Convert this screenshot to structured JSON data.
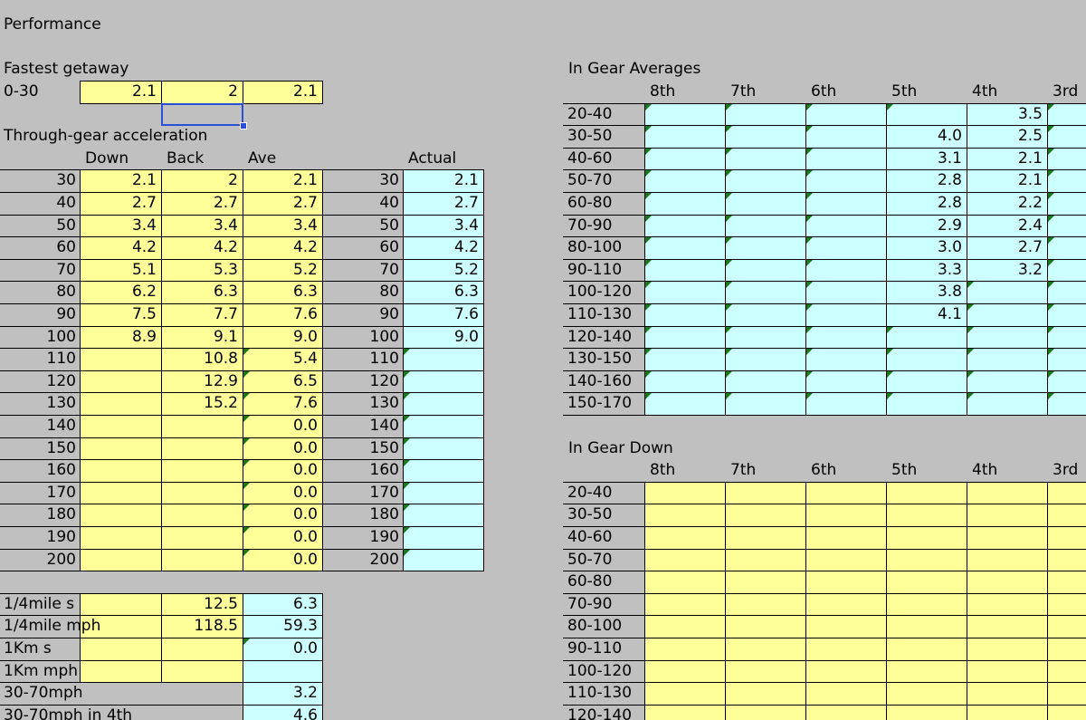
{
  "title": "Performance",
  "getaway": {
    "title": "Fastest getaway",
    "label": "0-30",
    "cells": [
      "2.1",
      "2",
      "2.1"
    ]
  },
  "acceleration": {
    "title": "Through-gear acceleration",
    "headers": [
      "Down",
      "Back",
      "Ave"
    ],
    "actual_header": "Actual",
    "rows": [
      [
        "30",
        "2.1",
        "2",
        "2.1",
        "30",
        "2.1"
      ],
      [
        "40",
        "2.7",
        "2.7",
        "2.7",
        "40",
        "2.7"
      ],
      [
        "50",
        "3.4",
        "3.4",
        "3.4",
        "50",
        "3.4"
      ],
      [
        "60",
        "4.2",
        "4.2",
        "4.2",
        "60",
        "4.2"
      ],
      [
        "70",
        "5.1",
        "5.3",
        "5.2",
        "70",
        "5.2"
      ],
      [
        "80",
        "6.2",
        "6.3",
        "6.3",
        "80",
        "6.3"
      ],
      [
        "90",
        "7.5",
        "7.7",
        "7.6",
        "90",
        "7.6"
      ],
      [
        "100",
        "8.9",
        "9.1",
        "9.0",
        "100",
        "9.0"
      ],
      [
        "110",
        null,
        "10.8",
        "5.4",
        "110",
        null
      ],
      [
        "120",
        null,
        "12.9",
        "6.5",
        "120",
        null
      ],
      [
        "130",
        null,
        "15.2",
        "7.6",
        "130",
        null
      ],
      [
        "140",
        null,
        null,
        "0.0",
        "140",
        null
      ],
      [
        "150",
        null,
        null,
        "0.0",
        "150",
        null
      ],
      [
        "160",
        null,
        null,
        "0.0",
        "160",
        null
      ],
      [
        "170",
        null,
        null,
        "0.0",
        "170",
        null
      ],
      [
        "180",
        null,
        null,
        "0.0",
        "180",
        null
      ],
      [
        "190",
        null,
        null,
        "0.0",
        "190",
        null
      ],
      [
        "200",
        null,
        null,
        "0.0",
        "200",
        null
      ]
    ]
  },
  "summary": {
    "rows": [
      [
        "1/4mile s",
        null,
        "12.5",
        "6.3"
      ],
      [
        "1/4mile mph",
        null,
        "118.5",
        "59.3"
      ],
      [
        "1Km s",
        null,
        null,
        "0.0"
      ],
      [
        "1Km mph",
        null,
        null,
        null
      ],
      [
        "30-70mph",
        null,
        null,
        "3.2"
      ],
      [
        "30-70mph in 4th",
        null,
        null,
        "4.6"
      ]
    ]
  },
  "averages": {
    "title": "In Gear Averages",
    "headers": [
      "8th",
      "7th",
      "6th",
      "5th",
      "4th",
      "3rd"
    ],
    "rows": [
      [
        "20-40",
        null,
        null,
        null,
        null,
        "3.5",
        null
      ],
      [
        "30-50",
        null,
        null,
        null,
        "4.0",
        "2.5",
        null
      ],
      [
        "40-60",
        null,
        null,
        null,
        "3.1",
        "2.1",
        null
      ],
      [
        "50-70",
        null,
        null,
        null,
        "2.8",
        "2.1",
        null
      ],
      [
        "60-80",
        null,
        null,
        null,
        "2.8",
        "2.2",
        null
      ],
      [
        "70-90",
        null,
        null,
        null,
        "2.9",
        "2.4",
        null
      ],
      [
        "80-100",
        null,
        null,
        null,
        "3.0",
        "2.7",
        null
      ],
      [
        "90-110",
        null,
        null,
        null,
        "3.3",
        "3.2",
        null
      ],
      [
        "100-120",
        null,
        null,
        null,
        "3.8",
        null,
        null
      ],
      [
        "110-130",
        null,
        null,
        null,
        "4.1",
        null,
        null
      ],
      [
        "120-140",
        null,
        null,
        null,
        null,
        null,
        null
      ],
      [
        "130-150",
        null,
        null,
        null,
        null,
        null,
        null
      ],
      [
        "140-160",
        null,
        null,
        null,
        null,
        null,
        null
      ],
      [
        "150-170",
        null,
        null,
        null,
        null,
        null,
        null
      ]
    ]
  },
  "down": {
    "title": "In Gear Down",
    "headers": [
      "8th",
      "7th",
      "6th",
      "5th",
      "4th",
      "3rd"
    ],
    "rows": [
      [
        "20-40",
        null,
        null,
        null,
        null,
        null,
        null
      ],
      [
        "30-50",
        null,
        null,
        null,
        null,
        null,
        null
      ],
      [
        "40-60",
        null,
        null,
        null,
        null,
        null,
        null
      ],
      [
        "50-70",
        null,
        null,
        null,
        null,
        null,
        null
      ],
      [
        "60-80",
        null,
        null,
        null,
        null,
        null,
        null
      ],
      [
        "70-90",
        null,
        null,
        null,
        null,
        null,
        null
      ],
      [
        "80-100",
        null,
        null,
        null,
        null,
        null,
        null
      ],
      [
        "90-110",
        null,
        null,
        null,
        null,
        null,
        null
      ],
      [
        "100-120",
        null,
        null,
        null,
        null,
        null,
        null
      ],
      [
        "110-130",
        null,
        null,
        null,
        null,
        null,
        null
      ],
      [
        "120-140",
        null,
        null,
        null,
        null,
        null,
        null
      ]
    ]
  }
}
